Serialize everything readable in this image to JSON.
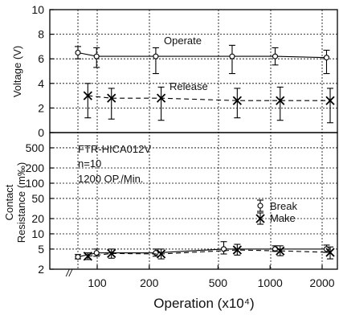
{
  "chart_data": [
    {
      "type": "line",
      "panel": "voltage",
      "ylabel": "Voltage (V)",
      "ylim": [
        0,
        10
      ],
      "yticks": [
        0,
        2,
        4,
        6,
        8,
        10
      ],
      "x_scale": "log",
      "xticks": [
        "100",
        "200",
        "500",
        "1000",
        "2000"
      ],
      "grid": true,
      "series": [
        {
          "name": "Operate",
          "line": "solid",
          "marker": "circle",
          "points": [
            {
              "x": 70,
              "y": 6.5,
              "err": [
                6.0,
                7.0
              ]
            },
            {
              "x": 90,
              "y": 6.2,
              "err": [
                5.3,
                6.9
              ]
            },
            {
              "x": 200,
              "y": 6.2,
              "err": [
                4.8,
                6.9
              ]
            },
            {
              "x": 560,
              "y": 6.2,
              "err": [
                4.8,
                7.1
              ]
            },
            {
              "x": 1000,
              "y": 6.2,
              "err": [
                5.5,
                6.9
              ]
            },
            {
              "x": 2000,
              "y": 6.1,
              "err": [
                4.8,
                6.7
              ]
            }
          ]
        },
        {
          "name": "Release",
          "line": "dashed",
          "marker": "x",
          "points": [
            {
              "x": 80,
              "y": 3.0,
              "err": [
                1.2,
                4.0
              ]
            },
            {
              "x": 110,
              "y": 2.8,
              "err": [
                1.1,
                3.6
              ]
            },
            {
              "x": 215,
              "y": 2.8,
              "err": [
                1.0,
                3.7
              ]
            },
            {
              "x": 600,
              "y": 2.6,
              "err": [
                1.2,
                3.6
              ]
            },
            {
              "x": 1070,
              "y": 2.6,
              "err": [
                1.0,
                3.7
              ]
            },
            {
              "x": 2100,
              "y": 2.6,
              "err": [
                0.8,
                3.6
              ]
            }
          ]
        }
      ]
    },
    {
      "type": "line",
      "panel": "contact_resistance",
      "ylabel_lines": [
        "Contact",
        "Resistance (m‰)"
      ],
      "y_scale": "log",
      "ylim": [
        2,
        1000
      ],
      "yticks": [
        2,
        5,
        10,
        20,
        50,
        100,
        200,
        500
      ],
      "xlabel": "Operation (x10⁴)",
      "x_scale": "log",
      "xticks": [
        "100",
        "200",
        "500",
        "1000",
        "2000"
      ],
      "axis_break_marks": "//",
      "grid": true,
      "annotation": [
        "FTR-HICA012V",
        "n=10",
        "1200 OP./Min."
      ],
      "series": [
        {
          "name": "Break",
          "line": "solid",
          "marker": "circle",
          "points": [
            {
              "x": 70,
              "y": 3.5,
              "err": [
                3.2,
                3.9
              ]
            },
            {
              "x": 90,
              "y": 4.2,
              "err": [
                3.6,
                5.0
              ]
            },
            {
              "x": 200,
              "y": 4.2,
              "err": [
                3.6,
                5.0
              ]
            },
            {
              "x": 500,
              "y": 5.0,
              "err": [
                4.0,
                7.0
              ]
            },
            {
              "x": 1000,
              "y": 5.0,
              "err": [
                4.5,
                5.8
              ]
            },
            {
              "x": 2000,
              "y": 5.0,
              "err": [
                4.3,
                6.0
              ]
            }
          ]
        },
        {
          "name": "Make",
          "line": "dashed",
          "marker": "x",
          "points": [
            {
              "x": 80,
              "y": 3.6,
              "err": [
                3.1,
                4.2
              ]
            },
            {
              "x": 110,
              "y": 4.1,
              "err": [
                3.3,
                5.0
              ]
            },
            {
              "x": 215,
              "y": 4.0,
              "err": [
                3.2,
                5.0
              ]
            },
            {
              "x": 600,
              "y": 4.8,
              "err": [
                3.8,
                6.2
              ]
            },
            {
              "x": 1070,
              "y": 4.6,
              "err": [
                3.7,
                5.8
              ]
            },
            {
              "x": 2100,
              "y": 4.3,
              "err": [
                3.2,
                5.5
              ]
            }
          ]
        }
      ]
    }
  ]
}
